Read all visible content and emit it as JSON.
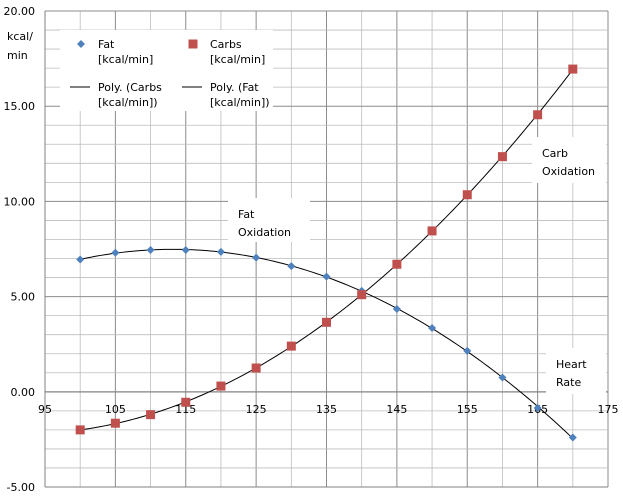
{
  "chart_data": {
    "type": "scatter",
    "ylabel_lines": [
      "kcal/",
      "min"
    ],
    "xlim": [
      95,
      175
    ],
    "ylim": [
      -5,
      20
    ],
    "x_major_step": 10,
    "x_minor_step": 5,
    "y_major_step": 5,
    "y_minor_step": 1,
    "x_tick_values": [
      95,
      105,
      115,
      125,
      135,
      145,
      155,
      165,
      175
    ],
    "x_tick_labels": [
      "95",
      "105",
      "115",
      "125",
      "135",
      "145",
      "155",
      "165",
      "175"
    ],
    "y_tick_values": [
      -5,
      0,
      5,
      10,
      15,
      20
    ],
    "y_tick_labels": [
      "-5.00",
      "0.00",
      "5.00",
      "10.00",
      "15.00",
      "20.00"
    ],
    "grid": true,
    "legend_position": "top-left",
    "series": [
      {
        "name": "Fat [kcal/min]",
        "marker": "diamond",
        "color": "#4f81bd",
        "x": [
          100,
          105,
          110,
          115,
          120,
          125,
          130,
          135,
          140,
          145,
          150,
          155,
          160,
          165,
          170
        ],
        "y": [
          6.95,
          7.3,
          7.45,
          7.45,
          7.35,
          7.05,
          6.6,
          6.05,
          5.3,
          4.35,
          3.35,
          2.15,
          0.75,
          -0.85,
          -2.4
        ]
      },
      {
        "name": "Carbs [kcal/min]",
        "marker": "square",
        "color": "#c0504d",
        "x": [
          100,
          105,
          110,
          115,
          120,
          125,
          130,
          135,
          140,
          145,
          150,
          155,
          160,
          165,
          170
        ],
        "y": [
          -2.0,
          -1.65,
          -1.2,
          -0.55,
          0.3,
          1.25,
          2.4,
          3.65,
          5.1,
          6.7,
          8.45,
          10.35,
          12.35,
          14.55,
          16.95
        ]
      }
    ],
    "trendlines": [
      {
        "name": "Poly. (Carbs [kcal/min])",
        "of": "Carbs [kcal/min]",
        "color": "#000000"
      },
      {
        "name": "Poly. (Fat [kcal/min])",
        "of": "Fat [kcal/min]",
        "color": "#000000"
      }
    ],
    "legend": [
      {
        "label_lines": [
          "Fat",
          "[kcal/min]"
        ],
        "kind": "diamond",
        "color": "#4f81bd"
      },
      {
        "label_lines": [
          "Carbs",
          "[kcal/min]"
        ],
        "kind": "square",
        "color": "#c0504d"
      },
      {
        "label_lines": [
          "Poly. (Carbs",
          "[kcal/min])"
        ],
        "kind": "line",
        "color": "#000000"
      },
      {
        "label_lines": [
          "Poly. (Fat",
          "[kcal/min])"
        ],
        "kind": "line",
        "color": "#000000"
      }
    ],
    "annotations": [
      {
        "lines": [
          "Fat",
          "Oxidation"
        ]
      },
      {
        "lines": [
          "Carb",
          "Oxidation"
        ]
      },
      {
        "lines": [
          "Heart",
          "Rate"
        ]
      }
    ]
  }
}
